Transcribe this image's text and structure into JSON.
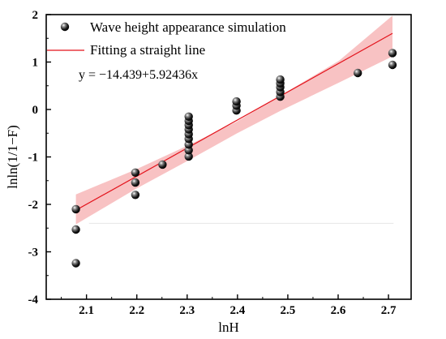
{
  "chart_data": {
    "type": "scatter",
    "xlabel": "lnH",
    "ylabel": "lnln(1/1−F)",
    "xlim": [
      2.02,
      2.745
    ],
    "ylim": [
      -4,
      2
    ],
    "x_ticks": [
      2.1,
      2.2,
      2.3,
      2.4,
      2.5,
      2.6,
      2.7
    ],
    "x_tick_labels": [
      "2.1",
      "2.2",
      "2.3",
      "2.4",
      "2.5",
      "2.6",
      "2.7"
    ],
    "y_ticks": [
      2,
      1,
      0,
      -1,
      -2,
      -3,
      -4
    ],
    "y_tick_labels": [
      "2",
      "1",
      "0",
      "-1",
      "-2",
      "-3",
      "-4"
    ],
    "legend": {
      "position": "top-left",
      "points_label": "Wave height appearance simulation",
      "fit_label": "Fitting a straight line"
    },
    "equation": "y = −14.439+5.92436x",
    "fit": {
      "intercept": -14.439,
      "slope": 5.92436,
      "x_range": [
        2.079,
        2.708
      ]
    },
    "confidence_band": {
      "x": [
        2.079,
        2.197,
        2.303,
        2.398,
        2.485,
        2.602,
        2.708
      ],
      "lower": [
        -2.42,
        -1.68,
        -1.07,
        -0.51,
        -0.03,
        0.57,
        1.12
      ],
      "upper": [
        -1.79,
        -1.27,
        -0.75,
        -0.26,
        0.29,
        1.03,
        1.98
      ]
    },
    "series": [
      {
        "points": [
          [
            2.079,
            -3.24
          ],
          [
            2.079,
            -2.53
          ],
          [
            2.079,
            -2.1
          ],
          [
            2.197,
            -1.8
          ],
          [
            2.197,
            -1.54
          ],
          [
            2.197,
            -1.33
          ],
          [
            2.251,
            -1.16
          ],
          [
            2.303,
            -0.99
          ],
          [
            2.303,
            -0.86
          ],
          [
            2.303,
            -0.74
          ],
          [
            2.303,
            -0.62
          ],
          [
            2.303,
            -0.52
          ],
          [
            2.303,
            -0.42
          ],
          [
            2.303,
            -0.33
          ],
          [
            2.303,
            -0.24
          ],
          [
            2.303,
            -0.15
          ],
          [
            2.398,
            -0.02
          ],
          [
            2.398,
            0.08
          ],
          [
            2.398,
            0.17
          ],
          [
            2.485,
            0.27
          ],
          [
            2.485,
            0.37
          ],
          [
            2.485,
            0.47
          ],
          [
            2.485,
            0.55
          ],
          [
            2.485,
            0.63
          ],
          [
            2.639,
            0.77
          ],
          [
            2.708,
            0.94
          ],
          [
            2.708,
            1.19
          ]
        ]
      }
    ],
    "colors": {
      "fit_line": "#e3121b",
      "band": "#f7b7b8",
      "points": "#111111"
    }
  }
}
